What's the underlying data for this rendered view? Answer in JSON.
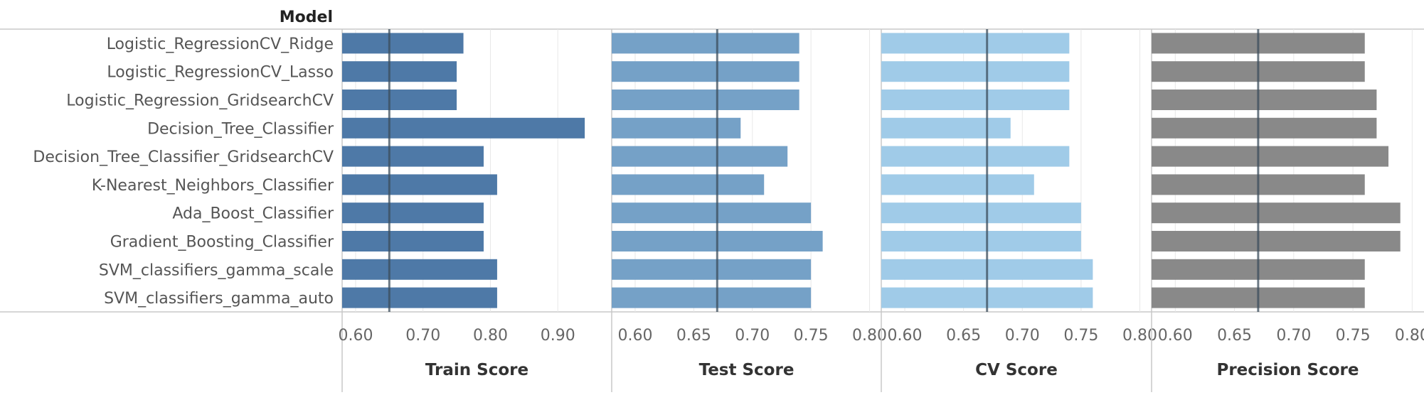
{
  "header": {
    "dimension_label": "Model"
  },
  "colors": {
    "train": "#4e79a7",
    "test": "#75a1c7",
    "cv": "#a0cbe8",
    "precision": "#898989",
    "reference_line": "#3c4d5c",
    "gridline": "#e8e8e8",
    "axis": "#c8c8c8"
  },
  "chart_data": {
    "type": "bar",
    "orientation": "horizontal",
    "categories": [
      "Logistic_RegressionCV_Ridge",
      "Logistic_RegressionCV_Lasso",
      "Logistic_Regression_GridsearchCV",
      "Decision_Tree_Classifier",
      "Decision_Tree_Classifier_GridsearchCV",
      "K-Nearest_Neighbors_Classifier",
      "Ada_Boost_Classifier",
      "Gradient_Boosting_Classifier",
      "SVM_classifiers_gamma_scale",
      "SVM_classifiers_gamma_auto"
    ],
    "grid": true,
    "series": [
      {
        "name": "Train Score",
        "color_key": "train",
        "xlim": [
          0.58,
          0.98
        ],
        "ticks": [
          "0.60",
          "0.70",
          "0.80",
          "0.90"
        ],
        "reference_line": 0.65,
        "values": [
          0.76,
          0.75,
          0.75,
          0.94,
          0.79,
          0.81,
          0.79,
          0.79,
          0.81,
          0.81
        ]
      },
      {
        "name": "Test Score",
        "color_key": "test",
        "xlim": [
          0.58,
          0.81
        ],
        "ticks": [
          "0.60",
          "0.65",
          "0.70",
          "0.75",
          "0.80"
        ],
        "reference_line": 0.67,
        "values": [
          0.74,
          0.74,
          0.74,
          0.69,
          0.73,
          0.71,
          0.75,
          0.76,
          0.75,
          0.75
        ]
      },
      {
        "name": "CV Score",
        "color_key": "cv",
        "xlim": [
          0.58,
          0.81
        ],
        "ticks": [
          "0.60",
          "0.65",
          "0.70",
          "0.75",
          "0.80"
        ],
        "reference_line": 0.67,
        "values": [
          0.74,
          0.74,
          0.74,
          0.69,
          0.74,
          0.71,
          0.75,
          0.75,
          0.76,
          0.76
        ]
      },
      {
        "name": "Precision Score",
        "color_key": "precision",
        "xlim": [
          0.58,
          0.81
        ],
        "ticks": [
          "0.60",
          "0.65",
          "0.70",
          "0.75",
          "0.80"
        ],
        "reference_line": 0.67,
        "values": [
          0.76,
          0.76,
          0.77,
          0.77,
          0.78,
          0.76,
          0.79,
          0.79,
          0.76,
          0.76
        ]
      }
    ]
  }
}
